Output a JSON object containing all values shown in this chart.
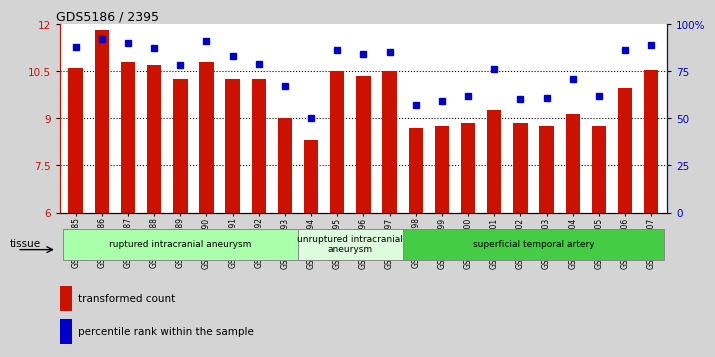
{
  "title": "GDS5186 / 2395",
  "samples": [
    "GSM1306885",
    "GSM1306886",
    "GSM1306887",
    "GSM1306888",
    "GSM1306889",
    "GSM1306890",
    "GSM1306891",
    "GSM1306892",
    "GSM1306893",
    "GSM1306894",
    "GSM1306895",
    "GSM1306896",
    "GSM1306897",
    "GSM1306898",
    "GSM1306899",
    "GSM1306900",
    "GSM1306901",
    "GSM1306902",
    "GSM1306903",
    "GSM1306904",
    "GSM1306905",
    "GSM1306906",
    "GSM1306907"
  ],
  "bar_values": [
    10.6,
    11.8,
    10.8,
    10.7,
    10.25,
    10.8,
    10.25,
    10.25,
    9.0,
    8.3,
    10.5,
    10.35,
    10.5,
    8.7,
    8.75,
    8.85,
    9.25,
    8.85,
    8.75,
    9.15,
    8.75,
    9.95,
    10.55
  ],
  "dot_values": [
    88,
    92,
    90,
    87,
    78,
    91,
    83,
    79,
    67,
    50,
    86,
    84,
    85,
    57,
    59,
    62,
    76,
    60,
    61,
    71,
    62,
    86,
    89
  ],
  "bar_color": "#cc1100",
  "dot_color": "#0000cc",
  "ylim_left": [
    6,
    12
  ],
  "ylim_right": [
    0,
    100
  ],
  "yticks_left": [
    6,
    7.5,
    9,
    10.5,
    12
  ],
  "yticks_right": [
    0,
    25,
    50,
    75,
    100
  ],
  "ytick_labels_right": [
    "0",
    "25",
    "50",
    "75",
    "100%"
  ],
  "group_labels": [
    "ruptured intracranial aneurysm",
    "unruptured intracranial\naneurysm",
    "superficial temporal artery"
  ],
  "group_starts": [
    0,
    9,
    13
  ],
  "group_ends": [
    8,
    12,
    22
  ],
  "group_colors": [
    "#aaffaa",
    "#ddfcdd",
    "#44cc44"
  ],
  "legend_bar_label": "transformed count",
  "legend_dot_label": "percentile rank within the sample",
  "tissue_label": "tissue",
  "bg_color": "#d4d4d4",
  "plot_bg_color": "#ffffff",
  "dotted_lines": [
    7.5,
    9.0,
    10.5
  ],
  "bar_bottom": 6
}
